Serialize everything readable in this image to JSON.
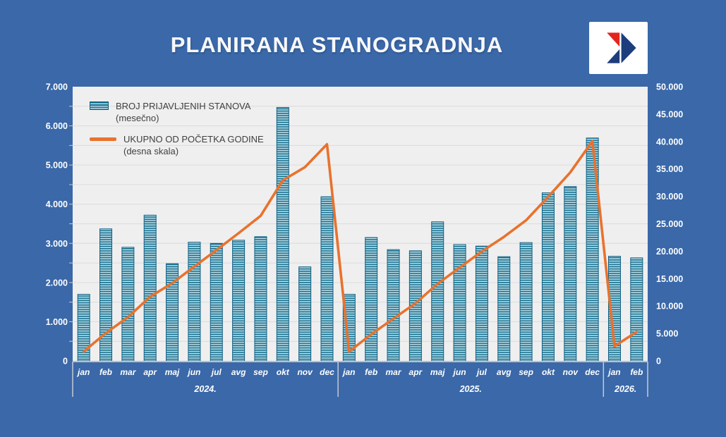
{
  "title": "PLANIRANA STANOGRADNJA",
  "legend": [
    {
      "swatch": "bar",
      "label": "BROJ PRIJAVLJENIH STANOVA (mesečno)"
    },
    {
      "swatch": "line",
      "label": "UKUPNO OD POČETKA GODINE (desna skala)"
    }
  ],
  "colors": {
    "background": "#3a68a9",
    "plot_background": "#f0efef",
    "gridline": "#dcdcdc",
    "bar_dark": "#14708f",
    "bar_light": "#bfdce6",
    "bar_border": "#0e5f84",
    "line": "#e8722d",
    "axis_text": "#ffffff",
    "legend_text": "#404040",
    "axis_line": "#bcc0c6",
    "separator": "#c6cad0",
    "logo_red": "#e4251f",
    "logo_navy": "#1d3d7d"
  },
  "logo": {
    "name": "arrow-logo"
  },
  "chart_data": {
    "type": "bar",
    "title": "PLANIRANA STANOGRADNJA",
    "categories": [
      "jan",
      "feb",
      "mar",
      "apr",
      "maj",
      "jun",
      "jul",
      "avg",
      "sep",
      "okt",
      "nov",
      "dec",
      "jan",
      "feb",
      "mar",
      "apr",
      "maj",
      "jun",
      "jul",
      "avg",
      "sep",
      "okt",
      "nov",
      "dec",
      "jan",
      "feb"
    ],
    "year_groups": [
      {
        "label": "2024.",
        "months": 12
      },
      {
        "label": "2025.",
        "months": 12
      },
      {
        "label": "2026.",
        "months": 2
      }
    ],
    "series": [
      {
        "name": "BROJ PRIJAVLJENIH STANOVA (mesečno)",
        "type": "bar",
        "axis": "left",
        "values": [
          1700,
          3370,
          2900,
          3720,
          2480,
          3030,
          3000,
          3080,
          3170,
          6470,
          2400,
          4190,
          1700,
          3150,
          2840,
          2810,
          3550,
          2970,
          2930,
          2660,
          3020,
          4290,
          4450,
          5690,
          2670,
          2630
        ]
      },
      {
        "name": "UKUPNO OD POČETKA GODINE (desna skala)",
        "type": "line",
        "axis": "right",
        "values": [
          1700,
          5070,
          7970,
          11690,
          14170,
          17200,
          20200,
          23280,
          26450,
          32920,
          35320,
          39510,
          1700,
          4850,
          7690,
          10500,
          14050,
          17020,
          19950,
          22610,
          25630,
          29920,
          34370,
          40060,
          2670,
          5300
        ]
      }
    ],
    "left_axis": {
      "min": 0,
      "max": 7000,
      "tick_step": 1000,
      "gridline_step": 500,
      "tick_labels": [
        "0",
        "1.000",
        "2.000",
        "3.000",
        "4.000",
        "5.000",
        "6.000",
        "7.000"
      ]
    },
    "right_axis": {
      "min": 0,
      "max": 50000,
      "tick_step": 5000,
      "tick_labels": [
        "0",
        "5.000",
        "10.000",
        "15.000",
        "20.000",
        "25.000",
        "30.000",
        "35.000",
        "40.000",
        "45.000",
        "50.000"
      ]
    },
    "grid": true,
    "legend_position": "top-left-inside"
  }
}
